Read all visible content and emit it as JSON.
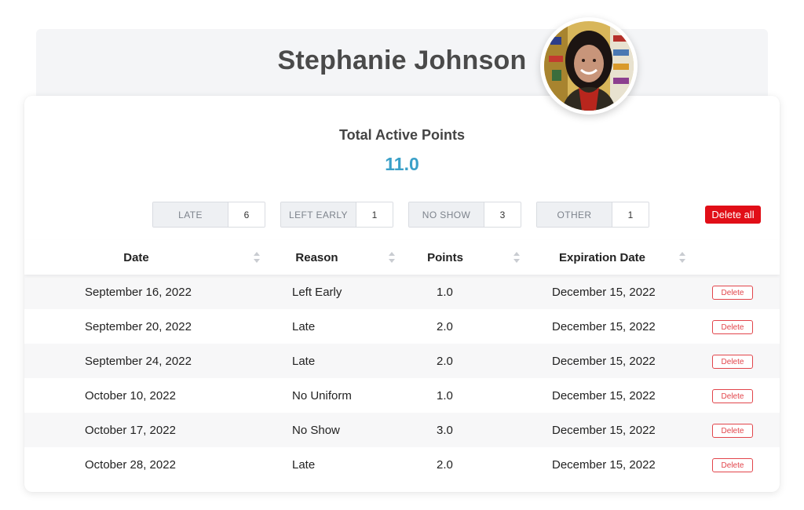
{
  "employee": {
    "name": "Stephanie Johnson"
  },
  "summary": {
    "title": "Total Active Points",
    "value": "11.0"
  },
  "stats": [
    {
      "label": "LATE",
      "count": "6"
    },
    {
      "label": "LEFT EARLY",
      "count": "1"
    },
    {
      "label": "NO SHOW",
      "count": "3"
    },
    {
      "label": "OTHER",
      "count": "1"
    }
  ],
  "actions": {
    "delete_all": "Delete all",
    "delete": "Delete"
  },
  "table": {
    "columns": [
      "Date",
      "Reason",
      "Points",
      "Expiration Date"
    ],
    "rows": [
      {
        "date": "September 16, 2022",
        "reason": "Left Early",
        "points": "1.0",
        "expiration": "December 15, 2022"
      },
      {
        "date": "September 20, 2022",
        "reason": "Late",
        "points": "2.0",
        "expiration": "December 15, 2022"
      },
      {
        "date": "September 24, 2022",
        "reason": "Late",
        "points": "2.0",
        "expiration": "December 15, 2022"
      },
      {
        "date": "October 10, 2022",
        "reason": "No Uniform",
        "points": "1.0",
        "expiration": "December 15, 2022"
      },
      {
        "date": "October 17, 2022",
        "reason": "No Show",
        "points": "3.0",
        "expiration": "December 15, 2022"
      },
      {
        "date": "October 28, 2022",
        "reason": "Late",
        "points": "2.0",
        "expiration": "December 15, 2022"
      }
    ]
  },
  "colors": {
    "accent": "#3aa0c8",
    "danger": "#e10e17",
    "outline_danger": "#e2454b"
  }
}
